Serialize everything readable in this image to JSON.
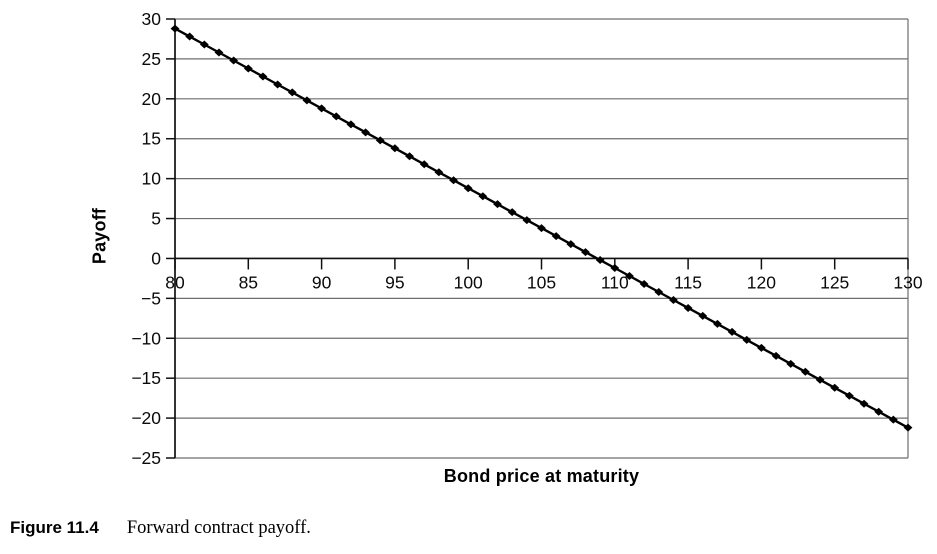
{
  "figure": {
    "caption_label": "Figure 11.4",
    "caption_text": "Forward contract payoff."
  },
  "chart_data": {
    "type": "line",
    "title": "",
    "xlabel": "Bond price at maturity",
    "ylabel": "Payoff",
    "xlim": [
      80,
      130
    ],
    "ylim": [
      -25,
      30
    ],
    "x_ticks": [
      80,
      85,
      90,
      95,
      100,
      105,
      110,
      115,
      120,
      125,
      130
    ],
    "y_ticks": [
      30,
      25,
      20,
      15,
      10,
      5,
      0,
      -5,
      -10,
      -15,
      -20,
      -25
    ],
    "grid": "horizontal",
    "legend": "none",
    "marker": "diamond",
    "line_color": "#000000",
    "grid_color": "#6e6e6e",
    "axis_color": "#111111",
    "series": [
      {
        "name": "Forward contract payoff",
        "x": [
          80,
          81,
          82,
          83,
          84,
          85,
          86,
          87,
          88,
          89,
          90,
          91,
          92,
          93,
          94,
          95,
          96,
          97,
          98,
          99,
          100,
          101,
          102,
          103,
          104,
          105,
          106,
          107,
          108,
          109,
          110,
          111,
          112,
          113,
          114,
          115,
          116,
          117,
          118,
          119,
          120,
          121,
          122,
          123,
          124,
          125,
          126,
          127,
          128,
          129,
          130
        ],
        "y": [
          28.8,
          27.8,
          26.8,
          25.8,
          24.8,
          23.8,
          22.8,
          21.8,
          20.8,
          19.8,
          18.8,
          17.8,
          16.8,
          15.8,
          14.8,
          13.8,
          12.8,
          11.8,
          10.8,
          9.8,
          8.8,
          7.8,
          6.8,
          5.8,
          4.8,
          3.8,
          2.8,
          1.8,
          0.8,
          -0.2,
          -1.2,
          -2.2,
          -3.2,
          -4.2,
          -5.2,
          -6.2,
          -7.2,
          -8.2,
          -9.2,
          -10.2,
          -11.2,
          -12.2,
          -13.2,
          -14.2,
          -15.2,
          -16.2,
          -17.2,
          -18.2,
          -19.2,
          -20.2,
          -21.2
        ]
      }
    ]
  }
}
